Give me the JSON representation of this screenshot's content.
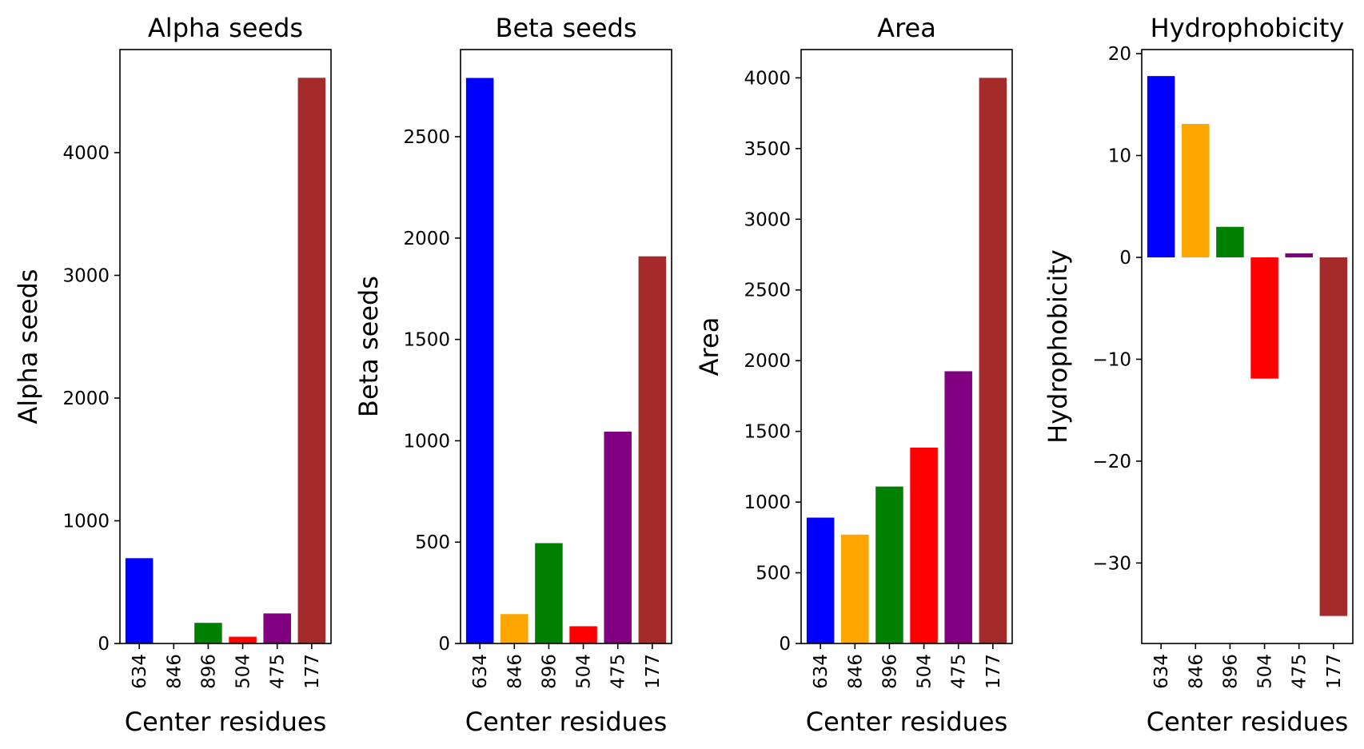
{
  "chart_data": [
    {
      "type": "bar",
      "title": "Alpha seeds",
      "xlabel": "Center residues",
      "ylabel": "Alpha seeds",
      "categories": [
        "634",
        "846",
        "896",
        "504",
        "475",
        "177"
      ],
      "values": [
        695,
        0,
        168,
        55,
        245,
        4610
      ],
      "colors": [
        "#0000ff",
        "#ffa500",
        "#008000",
        "#ff0000",
        "#800080",
        "#a52a2a"
      ],
      "ylim": [
        0,
        4840
      ],
      "yticks": [
        0,
        1000,
        2000,
        3000,
        4000
      ],
      "ytick_labels": [
        "0",
        "1000",
        "2000",
        "3000",
        "4000"
      ]
    },
    {
      "type": "bar",
      "title": "Beta seeds",
      "xlabel": "Center residues",
      "ylabel": "Beta seeds",
      "categories": [
        "634",
        "846",
        "896",
        "504",
        "475",
        "177"
      ],
      "values": [
        2790,
        145,
        495,
        85,
        1045,
        1910
      ],
      "colors": [
        "#0000ff",
        "#ffa500",
        "#008000",
        "#ff0000",
        "#800080",
        "#a52a2a"
      ],
      "ylim": [
        0,
        2930
      ],
      "yticks": [
        0,
        500,
        1000,
        1500,
        2000,
        2500
      ],
      "ytick_labels": [
        "0",
        "500",
        "1000",
        "1500",
        "2000",
        "2500"
      ]
    },
    {
      "type": "bar",
      "title": "Area",
      "xlabel": "Center residues",
      "ylabel": "Area",
      "categories": [
        "634",
        "846",
        "896",
        "504",
        "475",
        "177"
      ],
      "values": [
        890,
        770,
        1110,
        1385,
        1925,
        4000
      ],
      "colors": [
        "#0000ff",
        "#ffa500",
        "#008000",
        "#ff0000",
        "#800080",
        "#a52a2a"
      ],
      "ylim": [
        0,
        4200
      ],
      "yticks": [
        0,
        500,
        1000,
        1500,
        2000,
        2500,
        3000,
        3500,
        4000
      ],
      "ytick_labels": [
        "0",
        "500",
        "1000",
        "1500",
        "2000",
        "2500",
        "3000",
        "3500",
        "4000"
      ]
    },
    {
      "type": "bar",
      "title": "Hydrophobicity",
      "xlabel": "Center residues",
      "ylabel": "Hydrophobicity",
      "categories": [
        "634",
        "846",
        "896",
        "504",
        "475",
        "177"
      ],
      "values": [
        17.8,
        13.1,
        3.0,
        -11.9,
        0.4,
        -35.2
      ],
      "colors": [
        "#0000ff",
        "#ffa500",
        "#008000",
        "#ff0000",
        "#800080",
        "#a52a2a"
      ],
      "ylim": [
        -37.9,
        20.4
      ],
      "yticks": [
        -30,
        -20,
        -10,
        0,
        10,
        20
      ],
      "ytick_labels": [
        "−30",
        "−20",
        "−10",
        "0",
        "10",
        "20"
      ]
    }
  ]
}
